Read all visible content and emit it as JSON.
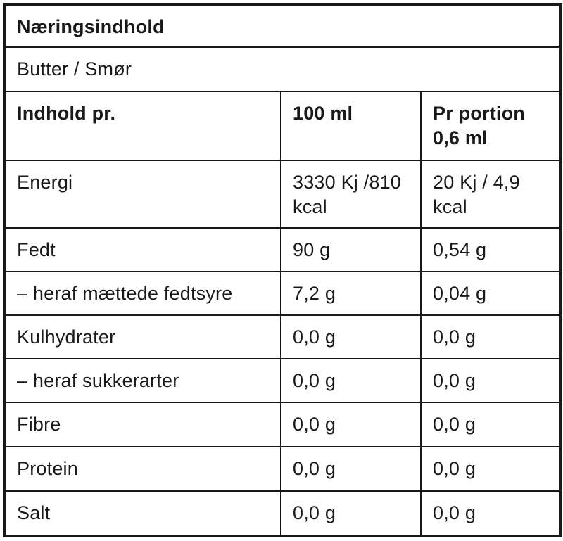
{
  "colors": {
    "text": "#191919",
    "border": "#191919",
    "background": "#ffffff"
  },
  "table": {
    "title": "Næringsindhold",
    "product": "Butter / Smør",
    "header": {
      "col_label": "Indhold pr.",
      "col_100ml": "100 ml",
      "col_portion": "Pr portion 0,6 ml"
    },
    "rows": [
      {
        "label": "Energi",
        "per_100ml": "3330 Kj /810 kcal",
        "per_portion": "20 Kj / 4,9 kcal"
      },
      {
        "label": "Fedt",
        "per_100ml": "90 g",
        "per_portion": "0,54 g"
      },
      {
        "label": "– heraf mættede fedtsyre",
        "per_100ml": "7,2 g",
        "per_portion": "0,04 g"
      },
      {
        "label": "Kulhydrater",
        "per_100ml": "0,0 g",
        "per_portion": "0,0 g"
      },
      {
        "label": "– heraf sukkerarter",
        "per_100ml": "0,0 g",
        "per_portion": "0,0 g"
      },
      {
        "label": "Fibre",
        "per_100ml": "0,0 g",
        "per_portion": "0,0 g"
      },
      {
        "label": "Protein",
        "per_100ml": "0,0 g",
        "per_portion": "0,0 g"
      },
      {
        "label": "Salt",
        "per_100ml": "0,0 g",
        "per_portion": "0,0 g"
      }
    ]
  }
}
